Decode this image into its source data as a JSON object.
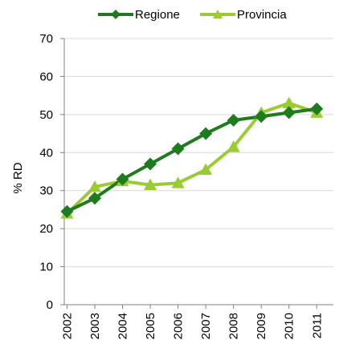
{
  "chart_data": {
    "type": "line",
    "title": "",
    "xlabel": "",
    "ylabel": "% RD",
    "ylim": [
      0,
      70
    ],
    "yticks": [
      0,
      10,
      20,
      30,
      40,
      50,
      60,
      70
    ],
    "categories": [
      "2002",
      "2003",
      "2004",
      "2005",
      "2006",
      "2007",
      "2008",
      "2009",
      "2010",
      "2011"
    ],
    "grid": true,
    "legend_position": "top",
    "series": [
      {
        "name": "Regione",
        "color": "#1e7b1e",
        "marker": "diamond",
        "values": [
          24.5,
          28,
          33,
          37,
          41,
          45,
          48.5,
          49.5,
          50.5,
          51.5
        ]
      },
      {
        "name": "Provincia",
        "color": "#99cc33",
        "marker": "triangle",
        "values": [
          24,
          31,
          32.5,
          31.5,
          32,
          35.5,
          41.5,
          50.5,
          53,
          50.5
        ]
      }
    ]
  }
}
